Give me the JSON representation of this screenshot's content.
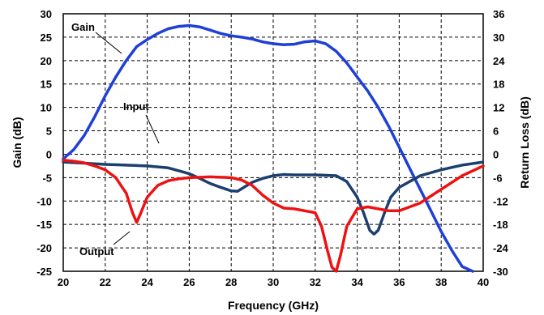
{
  "chart_data": {
    "type": "line",
    "xlabel": "Frequency (GHz)",
    "ylabel": "Gain (dB)",
    "y2label": "Return Loss  (dB)",
    "xlim": [
      20,
      40
    ],
    "ylim": [
      -25,
      30
    ],
    "y2lim": [
      -30,
      36
    ],
    "x_ticks": [
      "20",
      "22",
      "24",
      "26",
      "28",
      "30",
      "32",
      "34",
      "36",
      "38",
      "40"
    ],
    "y_ticks": [
      "30",
      "25",
      "20",
      "15",
      "10",
      "5",
      "0",
      "-5",
      "-10",
      "-15",
      "-20",
      "-25"
    ],
    "y2_ticks": [
      "36",
      "30",
      "24",
      "18",
      "12",
      "6",
      "0",
      "-6",
      "-12",
      "-18",
      "-24",
      "-30"
    ],
    "grid": true,
    "annotations": {
      "gain": "Gain",
      "input": "Input",
      "output": "Output"
    },
    "series": [
      {
        "name": "Gain",
        "axis": "left",
        "color": "#1f3fd6",
        "x": [
          20,
          20.5,
          21,
          21.5,
          22,
          22.5,
          23,
          23.5,
          24,
          24.5,
          25,
          25.5,
          26,
          26.5,
          27,
          27.5,
          28,
          28.5,
          29,
          29.5,
          30,
          30.5,
          31,
          31.5,
          32,
          32.5,
          33,
          33.5,
          34,
          34.5,
          35,
          35.5,
          36,
          36.5,
          37,
          37.5,
          38,
          38.5,
          39,
          39.5
        ],
        "y": [
          -1,
          1,
          4,
          8,
          12.5,
          16.5,
          20,
          23,
          24.5,
          25.8,
          26.8,
          27.3,
          27.5,
          27.2,
          26.5,
          25.8,
          25.3,
          25,
          24.6,
          24,
          23.6,
          23.4,
          23.5,
          24,
          24.2,
          23.6,
          22,
          19.5,
          16.5,
          13.5,
          10,
          6,
          1.5,
          -3,
          -7.5,
          -12,
          -16.5,
          -20.5,
          -24,
          -26
        ]
      },
      {
        "name": "Input",
        "axis": "right",
        "color": "#1b3f6e",
        "x": [
          20,
          21,
          22,
          23,
          24,
          25,
          26,
          26.5,
          27,
          27.5,
          28,
          28.3,
          28.6,
          29,
          29.5,
          30,
          30.5,
          31,
          32,
          33,
          33.5,
          34,
          34.3,
          34.6,
          34.8,
          35,
          35.3,
          35.6,
          36,
          37,
          38,
          39,
          40
        ],
        "y": [
          -2,
          -2.3,
          -2.6,
          -2.8,
          -3,
          -3.5,
          -5,
          -6.2,
          -7.5,
          -8.5,
          -9.4,
          -9.5,
          -8.5,
          -7.2,
          -6.2,
          -5.5,
          -5.2,
          -5.3,
          -5.3,
          -5.5,
          -7,
          -11,
          -15,
          -19.5,
          -20.5,
          -19.5,
          -15,
          -11,
          -8.5,
          -5.5,
          -4,
          -2.8,
          -2
        ]
      },
      {
        "name": "Output",
        "axis": "right",
        "color": "#ee1111",
        "x": [
          20,
          20.5,
          21,
          21.5,
          22,
          22.5,
          23,
          23.3,
          23.5,
          23.7,
          24,
          24.5,
          25,
          25.5,
          26,
          27,
          28,
          28.5,
          29,
          29.5,
          30,
          30.5,
          31,
          31.5,
          32,
          32.3,
          32.6,
          32.8,
          33,
          33.2,
          33.5,
          34,
          34.5,
          35,
          35.5,
          36,
          37,
          38,
          39,
          40
        ],
        "y": [
          -1.5,
          -1.8,
          -2.2,
          -3,
          -4,
          -6,
          -10,
          -15,
          -17.5,
          -15,
          -11,
          -8,
          -6.8,
          -6.3,
          -6,
          -5.8,
          -6,
          -6.6,
          -8,
          -10.5,
          -12.5,
          -13.8,
          -14,
          -14.5,
          -15,
          -18.5,
          -25,
          -29,
          -30.5,
          -26,
          -18.5,
          -14,
          -13.5,
          -14,
          -14.5,
          -14.5,
          -12.5,
          -9,
          -5.5,
          -3
        ]
      }
    ]
  }
}
